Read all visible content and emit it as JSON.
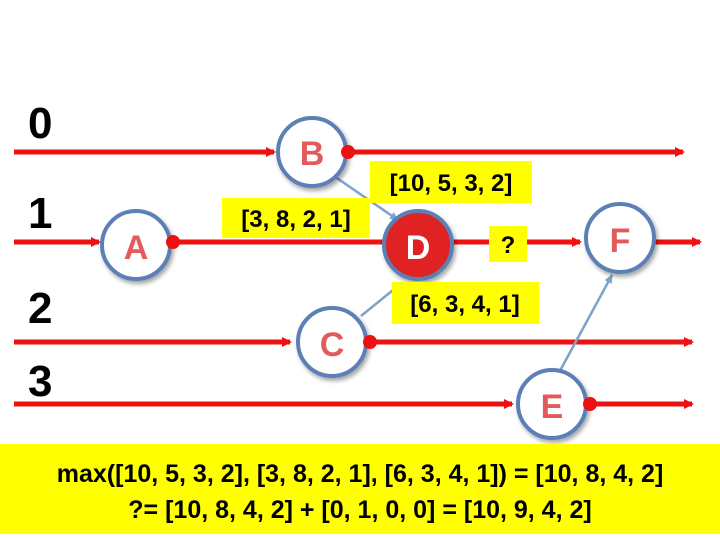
{
  "colors": {
    "line": "#ee1111",
    "node_fill": "#ffffff",
    "node_stroke": "#5b80b5",
    "node_text": "#e25a5a",
    "active_fill": "#e02222",
    "active_text": "#ffffff",
    "highlight": "#ffff00",
    "message": "#7ea2c9"
  },
  "lanes": [
    {
      "id": "lane-0",
      "label": "0"
    },
    {
      "id": "lane-1",
      "label": "1"
    },
    {
      "id": "lane-2",
      "label": "2"
    },
    {
      "id": "lane-3",
      "label": "3"
    }
  ],
  "nodes": [
    {
      "id": "A",
      "label": "A",
      "lane": 1,
      "active": false
    },
    {
      "id": "B",
      "label": "B",
      "lane": 0,
      "active": false
    },
    {
      "id": "C",
      "label": "C",
      "lane": 2,
      "active": false
    },
    {
      "id": "D",
      "label": "D",
      "lane": 1,
      "active": true
    },
    {
      "id": "E",
      "label": "E",
      "lane": 3,
      "active": false
    },
    {
      "id": "F",
      "label": "F",
      "lane": 1,
      "active": false
    }
  ],
  "messages": [
    {
      "from": "B",
      "to": "D"
    },
    {
      "from": "C",
      "to": "D"
    },
    {
      "from": "E",
      "to": "F"
    }
  ],
  "vector_labels": {
    "b_vector": "[10, 5, 3, 2]",
    "a_vector": "[3, 8, 2, 1]",
    "c_vector": "[6, 3, 4, 1]",
    "unknown": "?"
  },
  "equation": {
    "line1": "max([10, 5, 3, 2], [3, 8, 2, 1], [6, 3, 4, 1]) = [10, 8, 4, 2]",
    "line2": "?= [10, 8, 4, 2] + [0, 1, 0, 0] = [10, 9, 4, 2]"
  }
}
